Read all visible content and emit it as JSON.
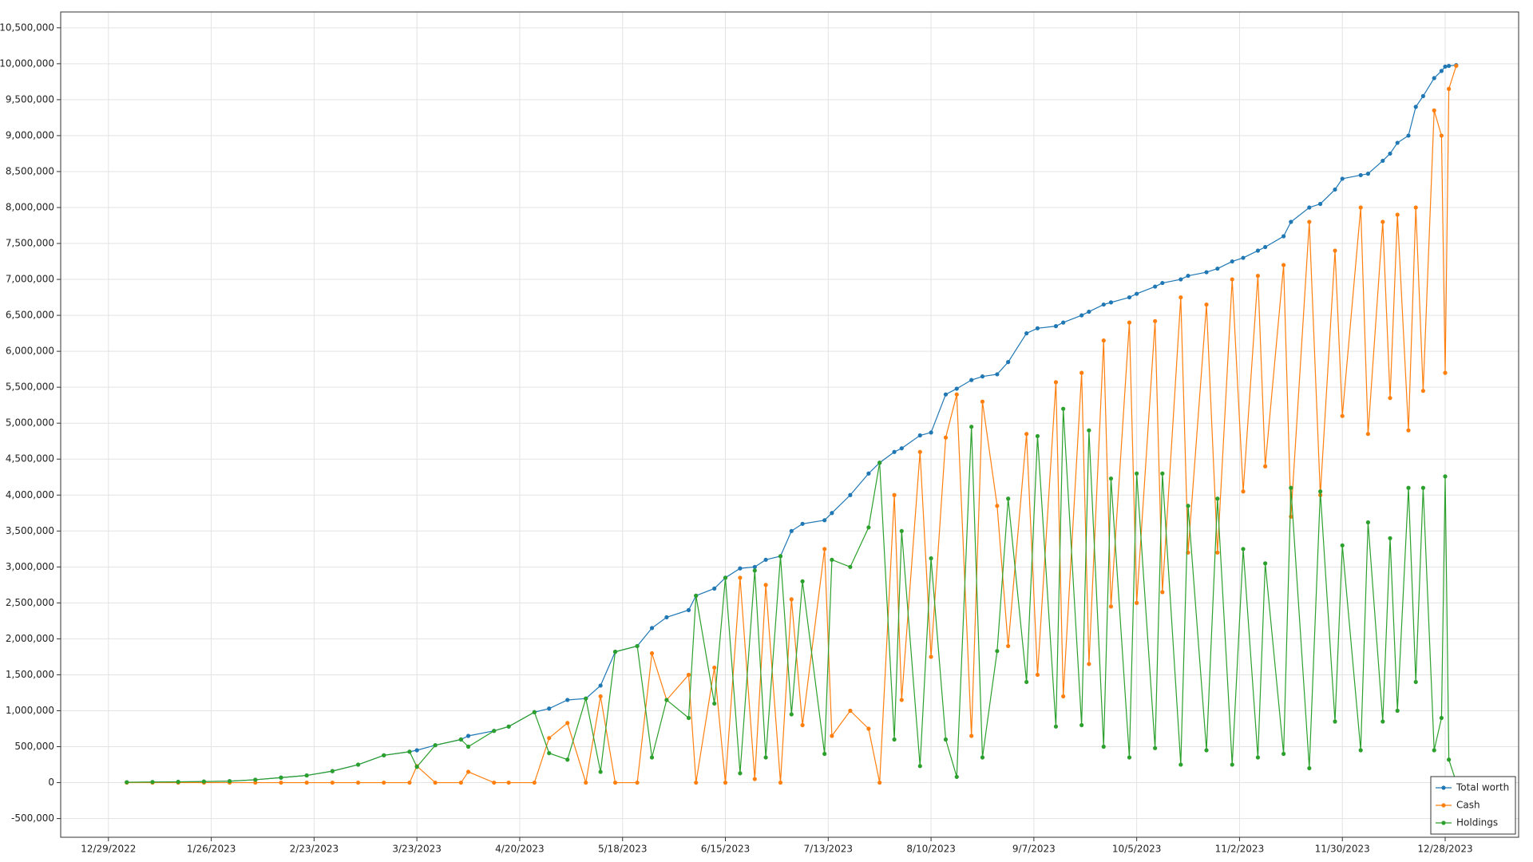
{
  "chart_data": {
    "type": "line",
    "x": [
      "2023-01-03",
      "2023-01-10",
      "2023-01-17",
      "2023-01-24",
      "2023-01-31",
      "2023-02-07",
      "2023-02-14",
      "2023-02-21",
      "2023-02-28",
      "2023-03-07",
      "2023-03-14",
      "2023-03-21",
      "2023-03-23",
      "2023-03-28",
      "2023-04-04",
      "2023-04-06",
      "2023-04-13",
      "2023-04-17",
      "2023-04-24",
      "2023-04-28",
      "2023-05-03",
      "2023-05-08",
      "2023-05-12",
      "2023-05-16",
      "2023-05-22",
      "2023-05-26",
      "2023-05-30",
      "2023-06-05",
      "2023-06-07",
      "2023-06-12",
      "2023-06-15",
      "2023-06-19",
      "2023-06-23",
      "2023-06-26",
      "2023-06-30",
      "2023-07-03",
      "2023-07-06",
      "2023-07-12",
      "2023-07-14",
      "2023-07-19",
      "2023-07-24",
      "2023-07-27",
      "2023-07-31",
      "2023-08-02",
      "2023-08-07",
      "2023-08-10",
      "2023-08-14",
      "2023-08-17",
      "2023-08-21",
      "2023-08-24",
      "2023-08-28",
      "2023-08-31",
      "2023-09-05",
      "2023-09-08",
      "2023-09-13",
      "2023-09-15",
      "2023-09-20",
      "2023-09-22",
      "2023-09-26",
      "2023-09-28",
      "2023-10-03",
      "2023-10-05",
      "2023-10-10",
      "2023-10-12",
      "2023-10-17",
      "2023-10-19",
      "2023-10-24",
      "2023-10-27",
      "2023-10-31",
      "2023-11-03",
      "2023-11-07",
      "2023-11-09",
      "2023-11-14",
      "2023-11-16",
      "2023-11-21",
      "2023-11-24",
      "2023-11-28",
      "2023-11-30",
      "2023-12-05",
      "2023-12-07",
      "2023-12-11",
      "2023-12-13",
      "2023-12-15",
      "2023-12-18",
      "2023-12-20",
      "2023-12-22",
      "2023-12-25",
      "2023-12-27",
      "2023-12-28",
      "2023-12-29",
      "2023-12-31"
    ],
    "series": [
      {
        "name": "Total worth",
        "color": "#1f77b4",
        "values": [
          5000,
          8000,
          10000,
          15000,
          20000,
          40000,
          70000,
          100000,
          160000,
          250000,
          380000,
          430000,
          450000,
          520000,
          600000,
          650000,
          720000,
          780000,
          980000,
          1030000,
          1150000,
          1170000,
          1350000,
          1820000,
          1900000,
          2150000,
          2300000,
          2400000,
          2600000,
          2700000,
          2850000,
          2980000,
          3000000,
          3100000,
          3150000,
          3500000,
          3600000,
          3650000,
          3750000,
          4000000,
          4300000,
          4450000,
          4600000,
          4650000,
          4830000,
          4870000,
          5400000,
          5480000,
          5600000,
          5650000,
          5680000,
          5850000,
          6250000,
          6320000,
          6350000,
          6400000,
          6500000,
          6550000,
          6650000,
          6680000,
          6750000,
          6800000,
          6900000,
          6950000,
          7000000,
          7050000,
          7100000,
          7150000,
          7250000,
          7300000,
          7400000,
          7450000,
          7600000,
          7800000,
          8000000,
          8050000,
          8250000,
          8400000,
          8450000,
          8470000,
          8650000,
          8750000,
          8900000,
          9000000,
          9400000,
          9550000,
          9800000,
          9900000,
          9960000,
          9970000,
          9980000
        ]
      },
      {
        "name": "Cash",
        "color": "#ff7f0e",
        "values": [
          0,
          0,
          0,
          0,
          0,
          0,
          0,
          0,
          0,
          0,
          0,
          0,
          230000,
          0,
          0,
          150000,
          0,
          0,
          0,
          620000,
          830000,
          0,
          1200000,
          0,
          0,
          1800000,
          1150000,
          1500000,
          0,
          1600000,
          0,
          2850000,
          50000,
          2750000,
          0,
          2550000,
          800000,
          3250000,
          650000,
          1000000,
          750000,
          0,
          4000000,
          1150000,
          4600000,
          1750000,
          4800000,
          5400000,
          650000,
          5300000,
          3850000,
          1900000,
          4850000,
          1500000,
          5570000,
          1200000,
          5700000,
          1650000,
          6150000,
          2450000,
          6400000,
          2500000,
          6420000,
          2650000,
          6750000,
          3200000,
          6650000,
          3200000,
          7000000,
          4050000,
          7050000,
          4400000,
          7200000,
          3700000,
          7800000,
          4000000,
          7400000,
          5100000,
          8000000,
          4850000,
          7800000,
          5350000,
          7900000,
          4900000,
          8000000,
          5450000,
          9350000,
          9000000,
          5700000,
          9650000,
          9970000
        ]
      },
      {
        "name": "Holdings",
        "color": "#2ca02c",
        "values": [
          5000,
          8000,
          10000,
          15000,
          20000,
          40000,
          70000,
          100000,
          160000,
          250000,
          380000,
          430000,
          220000,
          520000,
          600000,
          500000,
          720000,
          780000,
          980000,
          410000,
          320000,
          1170000,
          150000,
          1820000,
          1900000,
          350000,
          1150000,
          900000,
          2600000,
          1100000,
          2850000,
          130000,
          2950000,
          350000,
          3150000,
          950000,
          2800000,
          400000,
          3100000,
          3000000,
          3550000,
          4450000,
          600000,
          3500000,
          230000,
          3120000,
          600000,
          80000,
          4950000,
          350000,
          1830000,
          3950000,
          1400000,
          4820000,
          780000,
          5200000,
          800000,
          4900000,
          500000,
          4230000,
          350000,
          4300000,
          480000,
          4300000,
          250000,
          3850000,
          450000,
          3950000,
          250000,
          3250000,
          350000,
          3050000,
          400000,
          4100000,
          200000,
          4050000,
          850000,
          3300000,
          450000,
          3620000,
          850000,
          3400000,
          1000000,
          4100000,
          1400000,
          4100000,
          450000,
          900000,
          4260000,
          320000,
          10000
        ]
      }
    ],
    "xlim": [
      "2022-12-16",
      "2024-01-17"
    ],
    "xticks": [
      {
        "value": "2022-12-29",
        "label": "12/29/2022"
      },
      {
        "value": "2023-01-26",
        "label": "1/26/2023"
      },
      {
        "value": "2023-02-23",
        "label": "2/23/2023"
      },
      {
        "value": "2023-03-23",
        "label": "3/23/2023"
      },
      {
        "value": "2023-04-20",
        "label": "4/20/2023"
      },
      {
        "value": "2023-05-18",
        "label": "5/18/2023"
      },
      {
        "value": "2023-06-15",
        "label": "6/15/2023"
      },
      {
        "value": "2023-07-13",
        "label": "7/13/2023"
      },
      {
        "value": "2023-08-10",
        "label": "8/10/2023"
      },
      {
        "value": "2023-09-07",
        "label": "9/7/2023"
      },
      {
        "value": "2023-10-05",
        "label": "10/5/2023"
      },
      {
        "value": "2023-11-02",
        "label": "11/2/2023"
      },
      {
        "value": "2023-11-30",
        "label": "11/30/2023"
      },
      {
        "value": "2023-12-28",
        "label": "12/28/2023"
      }
    ],
    "ylim": [
      -760000,
      10720000
    ],
    "yticks": [
      {
        "value": -500000,
        "label": "-500,000"
      },
      0,
      {
        "value": 500000,
        "label": "500,000"
      },
      {
        "value": 1000000,
        "label": "1,000,000"
      },
      {
        "value": 1500000,
        "label": "1,500,000"
      },
      {
        "value": 2000000,
        "label": "2,000,000"
      },
      {
        "value": 2500000,
        "label": "2,500,000"
      },
      {
        "value": 3000000,
        "label": "3,000,000"
      },
      {
        "value": 3500000,
        "label": "3,500,000"
      },
      {
        "value": 4000000,
        "label": "4,000,000"
      },
      {
        "value": 4500000,
        "label": "4,500,000"
      },
      {
        "value": 5000000,
        "label": "5,000,000"
      },
      {
        "value": 5500000,
        "label": "5,500,000"
      },
      {
        "value": 6000000,
        "label": "6,000,000"
      },
      {
        "value": 6500000,
        "label": "6,500,000"
      },
      {
        "value": 7000000,
        "label": "7,000,000"
      },
      {
        "value": 7500000,
        "label": "7,500,000"
      },
      {
        "value": 8000000,
        "label": "8,000,000"
      },
      {
        "value": 8500000,
        "label": "8,500,000"
      },
      {
        "value": 9000000,
        "label": "9,000,000"
      },
      {
        "value": 9500000,
        "label": "9,500,000"
      },
      {
        "value": 10000000,
        "label": "10,000,000"
      },
      {
        "value": 10500000,
        "label": "10,500,000"
      }
    ],
    "grid": true,
    "legend": "lower right"
  }
}
